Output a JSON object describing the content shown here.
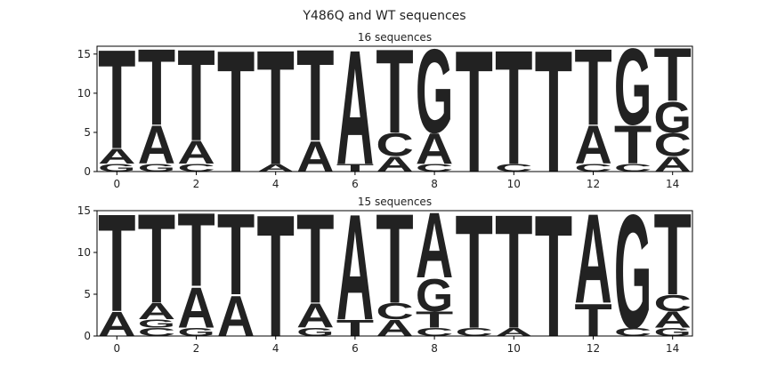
{
  "title": "Y486Q and WT sequences",
  "chart_data": [
    {
      "type": "logo",
      "title": "16 sequences",
      "x": [
        0,
        1,
        2,
        3,
        4,
        5,
        6,
        7,
        8,
        9,
        10,
        11,
        12,
        13,
        14
      ],
      "series": [
        {
          "name": "A",
          "color": "#008000",
          "values": [
            2,
            5,
            3,
            0,
            1,
            4,
            15,
            2,
            4,
            0,
            0,
            0,
            5,
            0,
            2
          ]
        },
        {
          "name": "C",
          "color": "#0000ff",
          "values": [
            0,
            0,
            1,
            0,
            0,
            0,
            0,
            3,
            1,
            0,
            1,
            0,
            1,
            1,
            3
          ]
        },
        {
          "name": "G",
          "color": "#ffa500",
          "values": [
            1,
            1,
            0,
            0,
            0,
            0,
            0,
            0,
            11,
            0,
            0,
            0,
            0,
            10,
            4
          ]
        },
        {
          "name": "T",
          "color": "#ff0000",
          "values": [
            13,
            10,
            12,
            16,
            15,
            12,
            1,
            11,
            0,
            16,
            15,
            16,
            10,
            5,
            7
          ]
        }
      ],
      "xlim": [
        -0.5,
        14.5
      ],
      "xticks": [
        0,
        2,
        4,
        6,
        8,
        10,
        12,
        14
      ],
      "ylim": [
        0,
        16
      ],
      "yticks": [
        0,
        5,
        10,
        15
      ]
    },
    {
      "type": "logo",
      "title": "15 sequences",
      "x": [
        0,
        1,
        2,
        3,
        4,
        5,
        6,
        7,
        8,
        9,
        10,
        11,
        12,
        13,
        14
      ],
      "series": [
        {
          "name": "A",
          "color": "#008000",
          "values": [
            3,
            2,
            5,
            5,
            0,
            3,
            13,
            2,
            8,
            0,
            1,
            0,
            11,
            0,
            2
          ]
        },
        {
          "name": "C",
          "color": "#0000ff",
          "values": [
            0,
            1,
            0,
            0,
            0,
            0,
            0,
            2,
            1,
            1,
            0,
            0,
            0,
            1,
            2
          ]
        },
        {
          "name": "G",
          "color": "#ffa500",
          "values": [
            0,
            1,
            1,
            0,
            0,
            1,
            0,
            0,
            4,
            0,
            0,
            0,
            0,
            14,
            1
          ]
        },
        {
          "name": "T",
          "color": "#ff0000",
          "values": [
            12,
            11,
            9,
            10,
            15,
            11,
            2,
            11,
            2,
            14,
            14,
            15,
            4,
            0,
            10
          ]
        }
      ],
      "xlim": [
        -0.5,
        14.5
      ],
      "xticks": [
        0,
        2,
        4,
        6,
        8,
        10,
        12,
        14
      ],
      "ylim": [
        0,
        15
      ],
      "yticks": [
        0,
        5,
        10,
        15
      ]
    }
  ]
}
